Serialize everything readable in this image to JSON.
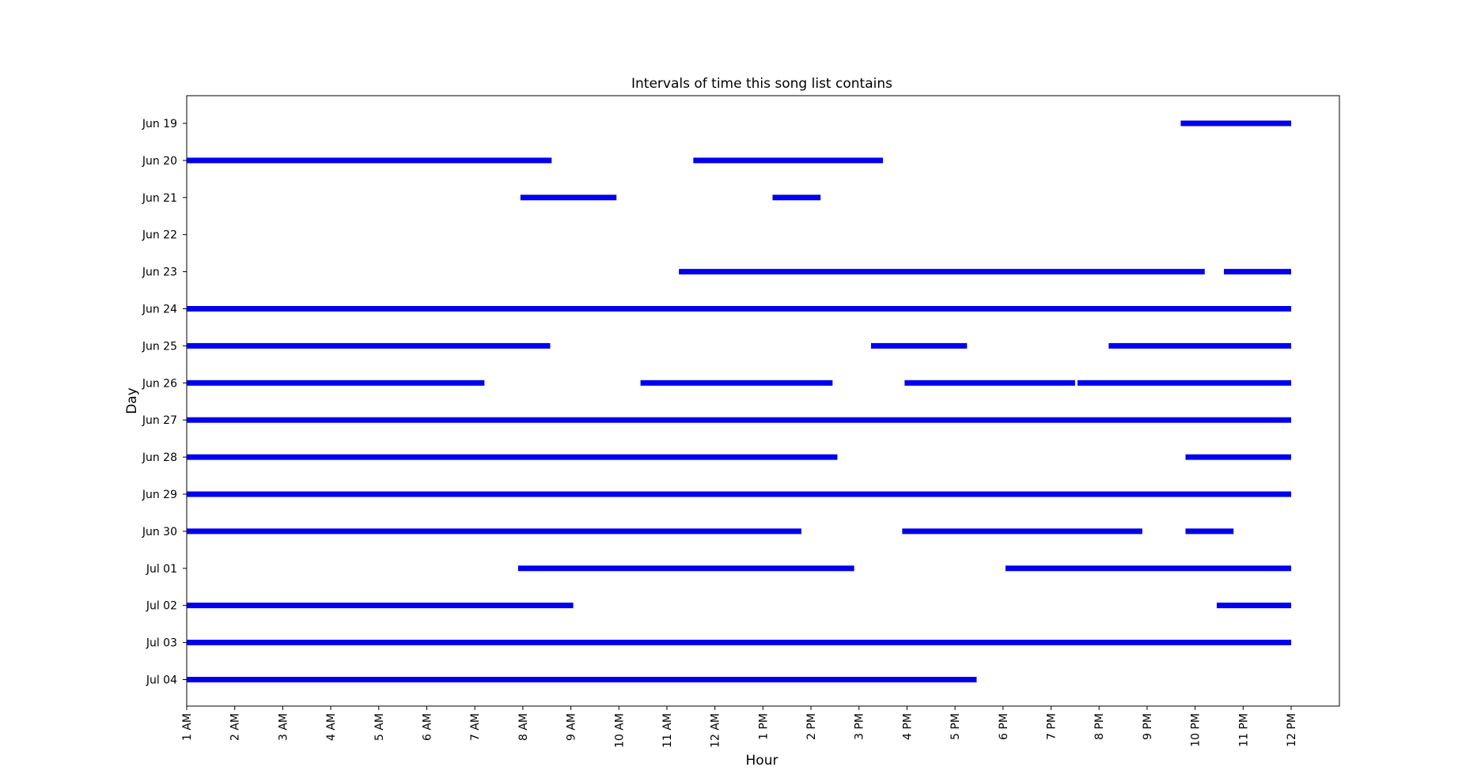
{
  "chart_data": {
    "type": "timeline",
    "title": "Intervals of time this song list contains",
    "xlabel": "Hour",
    "ylabel": "Day",
    "x_tick_labels": [
      "1 AM",
      "2 AM",
      "3 AM",
      "4 AM",
      "5 AM",
      "6 AM",
      "7 AM",
      "8 AM",
      "9 AM",
      "10 AM",
      "11 AM",
      "12 AM",
      "1 PM",
      "2 PM",
      "3 PM",
      "4 PM",
      "5 PM",
      "6 PM",
      "7 PM",
      "8 PM",
      "9 PM",
      "10 PM",
      "11 PM",
      "12 PM"
    ],
    "xlim": [
      1,
      25
    ],
    "days": [
      "Jun 19",
      "Jun 20",
      "Jun 21",
      "Jun 22",
      "Jun 23",
      "Jun 24",
      "Jun 25",
      "Jun 26",
      "Jun 27",
      "Jun 28",
      "Jun 29",
      "Jun 30",
      "Jul 01",
      "Jul 02",
      "Jul 03",
      "Jul 04"
    ],
    "series_color": "#0000ee",
    "grid": false,
    "intervals": [
      {
        "day": "Jun 19",
        "start": 21.7,
        "end": 24.0
      },
      {
        "day": "Jun 20",
        "start": 1.0,
        "end": 8.6
      },
      {
        "day": "Jun 20",
        "start": 11.55,
        "end": 15.5
      },
      {
        "day": "Jun 21",
        "start": 7.95,
        "end": 9.95
      },
      {
        "day": "Jun 21",
        "start": 13.2,
        "end": 14.2
      },
      {
        "day": "Jun 23",
        "start": 11.25,
        "end": 22.2
      },
      {
        "day": "Jun 23",
        "start": 22.6,
        "end": 24.0
      },
      {
        "day": "Jun 24",
        "start": 1.0,
        "end": 24.0
      },
      {
        "day": "Jun 25",
        "start": 1.0,
        "end": 8.57
      },
      {
        "day": "Jun 25",
        "start": 15.25,
        "end": 17.25
      },
      {
        "day": "Jun 25",
        "start": 20.2,
        "end": 24.0
      },
      {
        "day": "Jun 26",
        "start": 1.0,
        "end": 7.2
      },
      {
        "day": "Jun 26",
        "start": 10.45,
        "end": 14.45
      },
      {
        "day": "Jun 26",
        "start": 15.95,
        "end": 19.5
      },
      {
        "day": "Jun 26",
        "start": 19.55,
        "end": 24.0
      },
      {
        "day": "Jun 27",
        "start": 1.0,
        "end": 24.0
      },
      {
        "day": "Jun 28",
        "start": 1.0,
        "end": 14.55
      },
      {
        "day": "Jun 28",
        "start": 21.8,
        "end": 24.0
      },
      {
        "day": "Jun 29",
        "start": 1.0,
        "end": 24.0
      },
      {
        "day": "Jun 30",
        "start": 1.0,
        "end": 13.8
      },
      {
        "day": "Jun 30",
        "start": 15.9,
        "end": 20.9
      },
      {
        "day": "Jun 30",
        "start": 21.8,
        "end": 22.8
      },
      {
        "day": "Jul 01",
        "start": 7.9,
        "end": 14.9
      },
      {
        "day": "Jul 01",
        "start": 18.05,
        "end": 24.0
      },
      {
        "day": "Jul 02",
        "start": 1.0,
        "end": 9.05
      },
      {
        "day": "Jul 02",
        "start": 22.45,
        "end": 24.0
      },
      {
        "day": "Jul 03",
        "start": 1.0,
        "end": 24.0
      },
      {
        "day": "Jul 04",
        "start": 1.0,
        "end": 17.45
      }
    ]
  }
}
